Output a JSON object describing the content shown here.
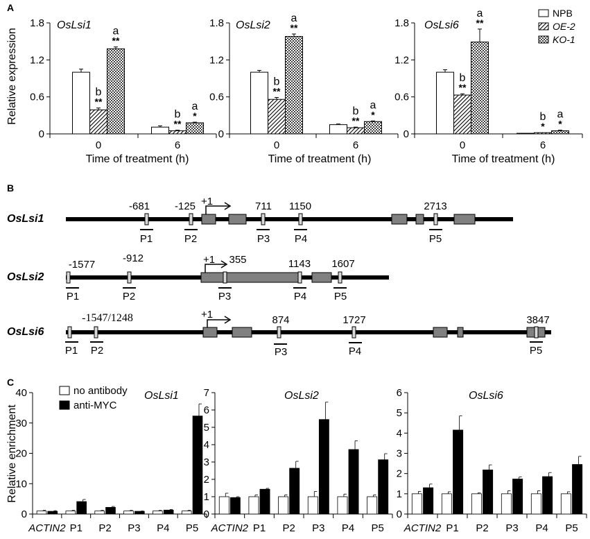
{
  "panel_labels": {
    "a": "A",
    "b": "B",
    "c": "C"
  },
  "colors": {
    "npb": "#ffffff",
    "bar_dark": "#000000",
    "exon": "#808080",
    "probe": "#d8d8d8"
  },
  "chart_data": [
    {
      "type": "bar",
      "panel": "A",
      "title": "OsLsi1",
      "ylabel": "Relative expression",
      "xlabel": "Time of treatment (h)",
      "categories": [
        "0",
        "6"
      ],
      "ylim": [
        0,
        1.8
      ],
      "yticks": [
        "0",
        "0.6",
        "1.2",
        "1.8"
      ],
      "series": [
        {
          "name": "NPB",
          "values": [
            1.0,
            0.11
          ],
          "errors": [
            0.05,
            0.02
          ],
          "annotations": [
            {
              "sig": "",
              "letter": ""
            },
            {
              "sig": "",
              "letter": ""
            }
          ]
        },
        {
          "name": "OE-2",
          "values": [
            0.39,
            0.05
          ],
          "errors": [
            0.03,
            0.01
          ],
          "annotations": [
            {
              "sig": "**",
              "letter": "b"
            },
            {
              "sig": "**",
              "letter": "b"
            }
          ]
        },
        {
          "name": "KO-1",
          "values": [
            1.38,
            0.18
          ],
          "errors": [
            0.03,
            0.01
          ],
          "annotations": [
            {
              "sig": "**",
              "letter": "a"
            },
            {
              "sig": "*",
              "letter": "a"
            }
          ]
        }
      ]
    },
    {
      "type": "bar",
      "panel": "A",
      "title": "OsLsi2",
      "xlabel": "Time of treatment (h)",
      "categories": [
        "0",
        "6"
      ],
      "ylim": [
        0,
        1.8
      ],
      "yticks": [
        "0",
        "0.6",
        "1.2",
        "1.8"
      ],
      "series": [
        {
          "name": "NPB",
          "values": [
            1.0,
            0.15
          ],
          "errors": [
            0.03,
            0.01
          ],
          "annotations": [
            {
              "sig": "",
              "letter": ""
            },
            {
              "sig": "",
              "letter": ""
            }
          ]
        },
        {
          "name": "OE-2",
          "values": [
            0.56,
            0.1
          ],
          "errors": [
            0.03,
            0.01
          ],
          "annotations": [
            {
              "sig": "**",
              "letter": "b"
            },
            {
              "sig": "**",
              "letter": "b"
            }
          ]
        },
        {
          "name": "KO-1",
          "values": [
            1.58,
            0.2
          ],
          "errors": [
            0.04,
            0.01
          ],
          "annotations": [
            {
              "sig": "**",
              "letter": "a"
            },
            {
              "sig": "*",
              "letter": "a"
            }
          ]
        }
      ]
    },
    {
      "type": "bar",
      "panel": "A",
      "title": "OsLsi6",
      "xlabel": "Time of treatment (h)",
      "categories": [
        "0",
        "6"
      ],
      "ylim": [
        0,
        1.8
      ],
      "yticks": [
        "0",
        "0.6",
        "1.2",
        "1.8"
      ],
      "series": [
        {
          "name": "NPB",
          "values": [
            1.0,
            0.01
          ],
          "errors": [
            0.04,
            0.0
          ],
          "annotations": [
            {
              "sig": "",
              "letter": ""
            },
            {
              "sig": "",
              "letter": ""
            }
          ]
        },
        {
          "name": "OE-2",
          "values": [
            0.63,
            0.02
          ],
          "errors": [
            0.02,
            0.0
          ],
          "annotations": [
            {
              "sig": "**",
              "letter": "b"
            },
            {
              "sig": "*",
              "letter": "b"
            }
          ]
        },
        {
          "name": "KO-1",
          "values": [
            1.49,
            0.05
          ],
          "errors": [
            0.21,
            0.01
          ],
          "annotations": [
            {
              "sig": "**",
              "letter": "a"
            },
            {
              "sig": "*",
              "letter": "a"
            }
          ]
        }
      ]
    },
    {
      "type": "bar",
      "panel": "C",
      "title": "OsLsi1",
      "ylabel": "Relative enrichment",
      "categories": [
        "ACTIN2",
        "P1",
        "P2",
        "P3",
        "P4",
        "P5"
      ],
      "ylim": [
        0,
        40
      ],
      "yticks": [
        "0",
        "10",
        "20",
        "30",
        "40"
      ],
      "series": [
        {
          "name": "no antibody",
          "values": [
            1,
            1,
            1,
            1,
            1,
            1
          ],
          "errors": [
            0.2,
            0.2,
            0.2,
            0.2,
            0.2,
            0.2
          ]
        },
        {
          "name": "anti-MYC",
          "values": [
            0.9,
            4.1,
            2.2,
            0.9,
            1.3,
            32.3
          ],
          "errors": [
            0.2,
            0.7,
            0.3,
            0.1,
            0.2,
            4.0
          ]
        }
      ]
    },
    {
      "type": "bar",
      "panel": "C",
      "title": "OsLsi2",
      "categories": [
        "ACTIN2",
        "P1",
        "P2",
        "P3",
        "P4",
        "P5"
      ],
      "ylim": [
        0,
        7
      ],
      "yticks": [
        "0",
        "1",
        "2",
        "3",
        "4",
        "5",
        "6",
        "7"
      ],
      "series": [
        {
          "name": "no antibody",
          "values": [
            1,
            1,
            1,
            1,
            1,
            1
          ],
          "errors": [
            0.2,
            0.1,
            0.1,
            0.3,
            0.15,
            0.1
          ]
        },
        {
          "name": "anti-MYC",
          "values": [
            0.95,
            1.43,
            2.64,
            5.45,
            3.72,
            3.13
          ],
          "errors": [
            0.05,
            0.05,
            0.4,
            1.0,
            0.5,
            0.35
          ]
        }
      ]
    },
    {
      "type": "bar",
      "panel": "C",
      "title": "OsLsi6",
      "categories": [
        "ACTIN2",
        "P1",
        "P2",
        "P3",
        "P4",
        "P5"
      ],
      "ylim": [
        0,
        6
      ],
      "yticks": [
        "0",
        "1",
        "2",
        "3",
        "4",
        "5",
        "6"
      ],
      "series": [
        {
          "name": "no antibody",
          "values": [
            1,
            1,
            1,
            1,
            1,
            1
          ],
          "errors": [
            0.12,
            0.1,
            0.05,
            0.15,
            0.15,
            0.1
          ]
        },
        {
          "name": "anti-MYC",
          "values": [
            1.3,
            4.15,
            2.18,
            1.73,
            1.85,
            2.45
          ],
          "errors": [
            0.18,
            0.7,
            0.25,
            0.1,
            0.2,
            0.4
          ]
        }
      ]
    }
  ],
  "gene_maps": [
    {
      "name": "OsLsi1",
      "probe_labels": [
        "-681",
        "-125",
        "711",
        "1150",
        "2713"
      ],
      "probe_names": [
        "P1",
        "P2",
        "P3",
        "P4",
        "P5"
      ],
      "tss": "+1"
    },
    {
      "name": "OsLsi2",
      "probe_labels": [
        "-1577",
        "-912",
        "355",
        "1143",
        "1607"
      ],
      "probe_names": [
        "P1",
        "P2",
        "P3",
        "P4",
        "P5"
      ],
      "tss": "+1"
    },
    {
      "name": "OsLsi6",
      "probe_labels": [
        "-1547/1248",
        "874",
        "1727",
        "3847"
      ],
      "probe_names": [
        "P1",
        "P2",
        "P3",
        "P4",
        "P5"
      ],
      "tss": "+1"
    }
  ]
}
